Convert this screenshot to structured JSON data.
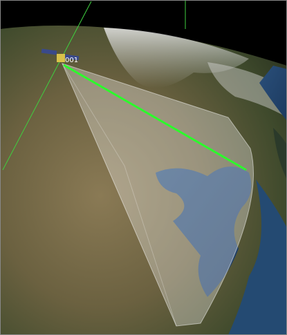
{
  "labels": {
    "satellite": "001"
  }
}
